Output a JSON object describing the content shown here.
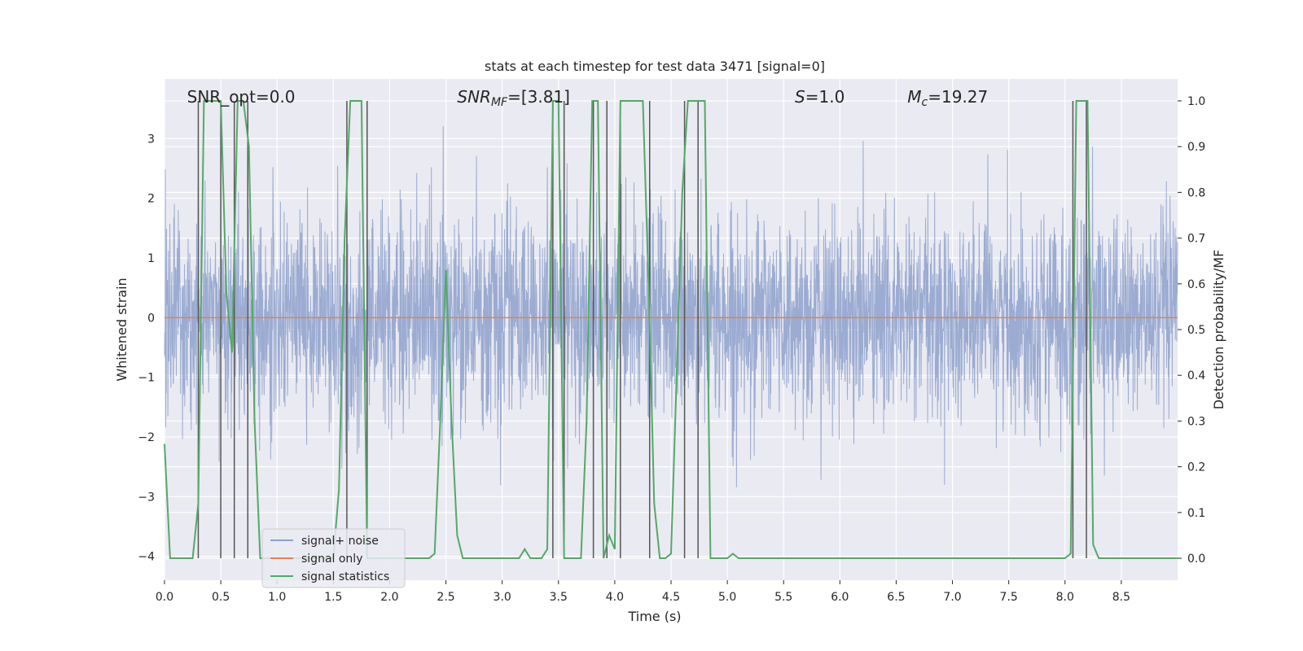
{
  "chart_data": {
    "type": "line",
    "title": "stats at each timestep for test data 3471 [signal=0]",
    "xlabel": "Time (s)",
    "ylabel_left": "Whitened strain",
    "ylabel_right": "Detection probability/MF",
    "xlim": [
      0.0,
      9.0
    ],
    "ylim_left": [
      -4.4,
      4.0
    ],
    "ylim_right": [
      -0.048,
      1.048
    ],
    "xticks": [
      "0.0",
      "0.5",
      "1.0",
      "1.5",
      "2.0",
      "2.5",
      "3.0",
      "3.5",
      "4.0",
      "4.5",
      "5.0",
      "5.5",
      "6.0",
      "6.5",
      "7.0",
      "7.5",
      "8.0",
      "8.5"
    ],
    "xtick_values": [
      0.0,
      0.5,
      1.0,
      1.5,
      2.0,
      2.5,
      3.0,
      3.5,
      4.0,
      4.5,
      5.0,
      5.5,
      6.0,
      6.5,
      7.0,
      7.5,
      8.0,
      8.5
    ],
    "yticks_left": [
      "−4",
      "−3",
      "−2",
      "−1",
      "0",
      "1",
      "2",
      "3"
    ],
    "ytick_values_left": [
      -4,
      -3,
      -2,
      -1,
      0,
      1,
      2,
      3
    ],
    "yticks_right": [
      "0.0",
      "0.1",
      "0.2",
      "0.3",
      "0.4",
      "0.5",
      "0.6",
      "0.7",
      "0.8",
      "0.9",
      "1.0"
    ],
    "ytick_values_right": [
      0.0,
      0.1,
      0.2,
      0.3,
      0.4,
      0.5,
      0.6,
      0.7,
      0.8,
      0.9,
      1.0
    ],
    "annotations": [
      {
        "text": "SNR_opt=0.0",
        "x": 0.2,
        "y": 3.7
      },
      {
        "text": "SNR",
        "sub": "MF",
        "suffix": "=[3.81]",
        "italic": true,
        "x": 2.6,
        "y": 3.7
      },
      {
        "text": "S",
        "suffix": "=1.0",
        "italic": true,
        "x": 5.6,
        "y": 3.7
      },
      {
        "text": "M",
        "sub": "c",
        "suffix": "=19.27",
        "italic": true,
        "x": 6.6,
        "y": 3.7
      }
    ],
    "series": [
      {
        "name": "signal+ noise",
        "color": "#8da0cb",
        "style": "noise",
        "envelope_p95": 1.65,
        "peak_max": 3.6,
        "peak_min": -3.95
      },
      {
        "name": "signal only",
        "color": "#dd8452",
        "style": "flat",
        "value": 0.0
      },
      {
        "name": "signal statistics",
        "color": "#55a868",
        "axis": "right",
        "x": [
          0.0,
          0.05,
          0.1,
          0.15,
          0.2,
          0.25,
          0.3,
          0.35,
          0.4,
          0.45,
          0.5,
          0.55,
          0.6,
          0.65,
          0.7,
          0.75,
          0.8,
          0.85,
          0.9,
          0.95,
          1.0,
          1.5,
          1.55,
          1.6,
          1.65,
          1.7,
          1.75,
          1.8,
          1.85,
          1.9,
          1.95,
          2.0,
          2.3,
          2.35,
          2.4,
          2.45,
          2.5,
          2.55,
          2.6,
          2.65,
          3.1,
          3.15,
          3.2,
          3.25,
          3.3,
          3.35,
          3.4,
          3.45,
          3.5,
          3.55,
          3.6,
          3.65,
          3.7,
          3.75,
          3.8,
          3.85,
          3.9,
          3.95,
          4.0,
          4.05,
          4.1,
          4.15,
          4.2,
          4.25,
          4.3,
          4.35,
          4.4,
          4.45,
          4.5,
          4.55,
          4.6,
          4.65,
          4.7,
          4.75,
          4.8,
          4.85,
          4.9,
          4.95,
          5.0,
          5.05,
          5.1,
          5.15,
          5.2,
          5.25,
          8.0,
          8.05,
          8.1,
          8.15,
          8.2,
          8.25,
          8.3,
          8.35,
          8.5,
          9.0
        ],
        "values": [
          0.25,
          0.0,
          0.0,
          0.0,
          0.0,
          0.0,
          0.12,
          1.0,
          1.0,
          1.0,
          1.0,
          0.58,
          0.45,
          1.0,
          1.0,
          0.9,
          0.3,
          0.0,
          0.0,
          0.0,
          0.0,
          0.0,
          0.15,
          0.7,
          1.0,
          1.0,
          1.0,
          0.0,
          0.0,
          0.0,
          0.0,
          0.0,
          0.0,
          0.0,
          0.01,
          0.3,
          0.63,
          0.3,
          0.05,
          0.0,
          0.0,
          0.0,
          0.02,
          0.0,
          0.0,
          0.0,
          0.02,
          1.0,
          1.0,
          0.0,
          0.0,
          0.0,
          0.0,
          0.3,
          1.0,
          1.0,
          0.0,
          0.05,
          0.02,
          1.0,
          1.0,
          1.0,
          1.0,
          1.0,
          0.6,
          0.12,
          0.0,
          0.0,
          0.01,
          0.4,
          0.8,
          1.0,
          1.0,
          1.0,
          1.0,
          0.0,
          0.0,
          0.0,
          0.0,
          0.01,
          0.0,
          0.0,
          0.0,
          0.0,
          0.0,
          0.01,
          1.0,
          1.0,
          1.0,
          0.03,
          0.0,
          0.0,
          0.0,
          0.0
        ]
      },
      {
        "name": "detection markers",
        "color": "#555555",
        "style": "vlines",
        "x": [
          0.3,
          0.5,
          0.62,
          0.74,
          1.62,
          1.8,
          3.45,
          3.55,
          3.81,
          3.93,
          4.05,
          4.31,
          4.62,
          4.74,
          8.07,
          8.19
        ],
        "ymin": 0.0,
        "ymax": 1.0
      }
    ],
    "legend": {
      "position": "lower-left",
      "entries": [
        {
          "label": "signal+ noise",
          "color": "#8da0cb"
        },
        {
          "label": "signal only",
          "color": "#dd8452"
        },
        {
          "label": "signal statistics",
          "color": "#55a868"
        }
      ]
    },
    "background": "#eaeaf2",
    "grid": true
  }
}
